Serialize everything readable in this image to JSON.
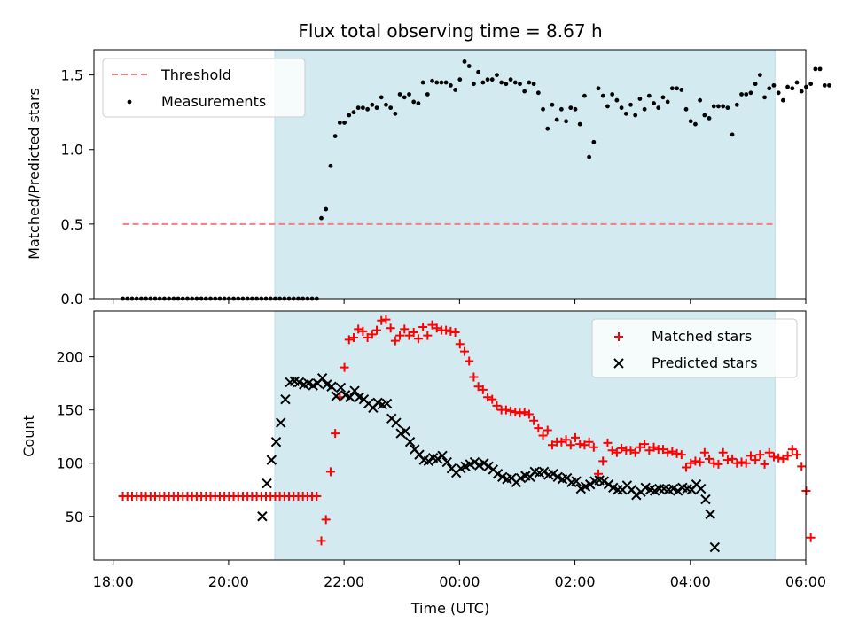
{
  "colors": {
    "shade": "#d3ebf0",
    "threshold": "#f08080",
    "matched": "#ff0000",
    "predicted": "#000000",
    "measurements": "#000000"
  },
  "chart_data": [
    {
      "type": "scatter",
      "title": "Flux total observing time = 8.67 h",
      "xlabel": "",
      "ylabel": "Matched/Predicted stars",
      "xlim": [
        "17:40",
        "06:00"
      ],
      "ylim": [
        0,
        1.67
      ],
      "yticks": [
        "0.0",
        "0.5",
        "1.0",
        "1.5"
      ],
      "grid": false,
      "legend_position": "top-left",
      "shaded_interval": [
        "20:48",
        "05:28"
      ],
      "threshold_series": {
        "name": "Threshold",
        "y": 0.5,
        "x_range": [
          "18:10",
          "05:28"
        ],
        "style": "dashed"
      },
      "series": [
        {
          "name": "Measurements",
          "marker": "dot",
          "x_start": "18:10",
          "x_step_minutes": 4.8,
          "values": [
            0,
            0,
            0,
            0,
            0,
            0,
            0,
            0,
            0,
            0,
            0,
            0,
            0,
            0,
            0,
            0,
            0,
            0,
            0,
            0,
            0,
            0,
            0,
            0,
            0,
            0,
            0,
            0,
            0,
            0,
            0,
            0,
            0,
            0,
            0,
            0,
            0,
            0,
            0,
            0,
            0,
            0,
            0,
            0.54,
            0.6,
            0.89,
            1.09,
            1.18,
            1.18,
            1.23,
            1.25,
            1.28,
            1.28,
            1.27,
            1.3,
            1.28,
            1.35,
            1.3,
            1.28,
            1.24,
            1.37,
            1.35,
            1.37,
            1.32,
            1.31,
            1.45,
            1.37,
            1.46,
            1.45,
            1.45,
            1.45,
            1.43,
            1.4,
            1.47,
            1.59,
            1.56,
            1.44,
            1.52,
            1.45,
            1.47,
            1.47,
            1.5,
            1.45,
            1.44,
            1.47,
            1.45,
            1.44,
            1.39,
            1.45,
            1.44,
            1.38,
            1.27,
            1.14,
            1.3,
            1.2,
            1.27,
            1.19,
            1.28,
            1.27,
            1.17,
            1.36,
            0.95,
            1.05,
            1.41,
            1.36,
            1.29,
            1.37,
            1.33,
            1.28,
            1.24,
            1.3,
            1.23,
            1.34,
            1.27,
            1.36,
            1.31,
            1.28,
            1.35,
            1.32,
            1.41,
            1.41,
            1.4,
            1.27,
            1.19,
            1.17,
            1.33,
            1.23,
            1.21,
            1.29,
            1.29,
            1.29,
            1.28,
            1.1,
            1.3,
            1.37,
            1.37,
            1.38,
            1.44,
            1.5,
            1.35,
            1.41,
            1.43,
            1.38,
            1.33,
            1.42,
            1.41,
            1.45,
            1.39,
            1.42,
            1.44,
            1.54,
            1.54,
            1.43,
            1.43
          ]
        }
      ]
    },
    {
      "type": "scatter",
      "title": "",
      "xlabel": "Time (UTC)",
      "ylabel": "Count",
      "xlim": [
        "17:40",
        "06:00"
      ],
      "ylim": [
        9,
        243
      ],
      "xticks": [
        "18:00",
        "20:00",
        "22:00",
        "00:00",
        "02:00",
        "04:00",
        "06:00"
      ],
      "yticks": [
        "50",
        "100",
        "150",
        "200"
      ],
      "grid": false,
      "legend_position": "top-right",
      "shaded_interval": [
        "20:48",
        "05:28"
      ],
      "series": [
        {
          "name": "Matched stars",
          "marker": "plus",
          "x_start": "18:10",
          "x_step_minutes": 4.8,
          "values": [
            69,
            69,
            69,
            69,
            69,
            69,
            69,
            69,
            69,
            69,
            69,
            69,
            69,
            69,
            69,
            69,
            69,
            69,
            69,
            69,
            69,
            69,
            69,
            69,
            69,
            69,
            69,
            69,
            69,
            69,
            69,
            69,
            69,
            69,
            69,
            69,
            69,
            69,
            69,
            69,
            69,
            69,
            69,
            27,
            47,
            92,
            128,
            162,
            190,
            216,
            218,
            226,
            224,
            218,
            221,
            225,
            234,
            235,
            227,
            215,
            220,
            226,
            220,
            223,
            217,
            228,
            220,
            230,
            227,
            225,
            225,
            224,
            223,
            212,
            205,
            196,
            181,
            172,
            169,
            162,
            160,
            154,
            150,
            150,
            149,
            148,
            147,
            148,
            146,
            140,
            133,
            126,
            131,
            117,
            120,
            120,
            122,
            117,
            124,
            118,
            117,
            120,
            115,
            90,
            102,
            119,
            112,
            110,
            114,
            112,
            112,
            110,
            115,
            118,
            112,
            115,
            113,
            113,
            110,
            111,
            109,
            108,
            96,
            100,
            102,
            101,
            110,
            104,
            100,
            99,
            110,
            103,
            104,
            100,
            101,
            100,
            107,
            103,
            108,
            99,
            110,
            106,
            105,
            104,
            107,
            113,
            108,
            97,
            74,
            30
          ]
        },
        {
          "name": "Predicted stars",
          "marker": "x",
          "x_start": "20:35",
          "x_step_minutes": 4.8,
          "values": [
            50,
            81,
            103,
            120,
            138,
            160,
            176,
            177,
            176,
            174,
            175,
            173,
            175,
            180,
            174,
            172,
            163,
            171,
            164,
            162,
            168,
            162,
            160,
            156,
            152,
            157,
            155,
            156,
            142,
            138,
            128,
            130,
            120,
            113,
            108,
            103,
            102,
            105,
            104,
            107,
            101,
            95,
            91,
            95,
            97,
            99,
            101,
            98,
            100,
            97,
            94,
            90,
            87,
            85,
            86,
            82,
            86,
            88,
            87,
            92,
            91,
            92,
            89,
            90,
            87,
            85,
            86,
            82,
            83,
            76,
            78,
            80,
            83,
            84,
            83,
            80,
            77,
            75,
            75,
            79,
            75,
            70,
            73,
            77,
            75,
            74,
            76,
            76,
            75,
            76,
            74,
            77,
            76,
            75,
            80,
            76,
            66,
            52,
            21
          ]
        }
      ]
    }
  ]
}
